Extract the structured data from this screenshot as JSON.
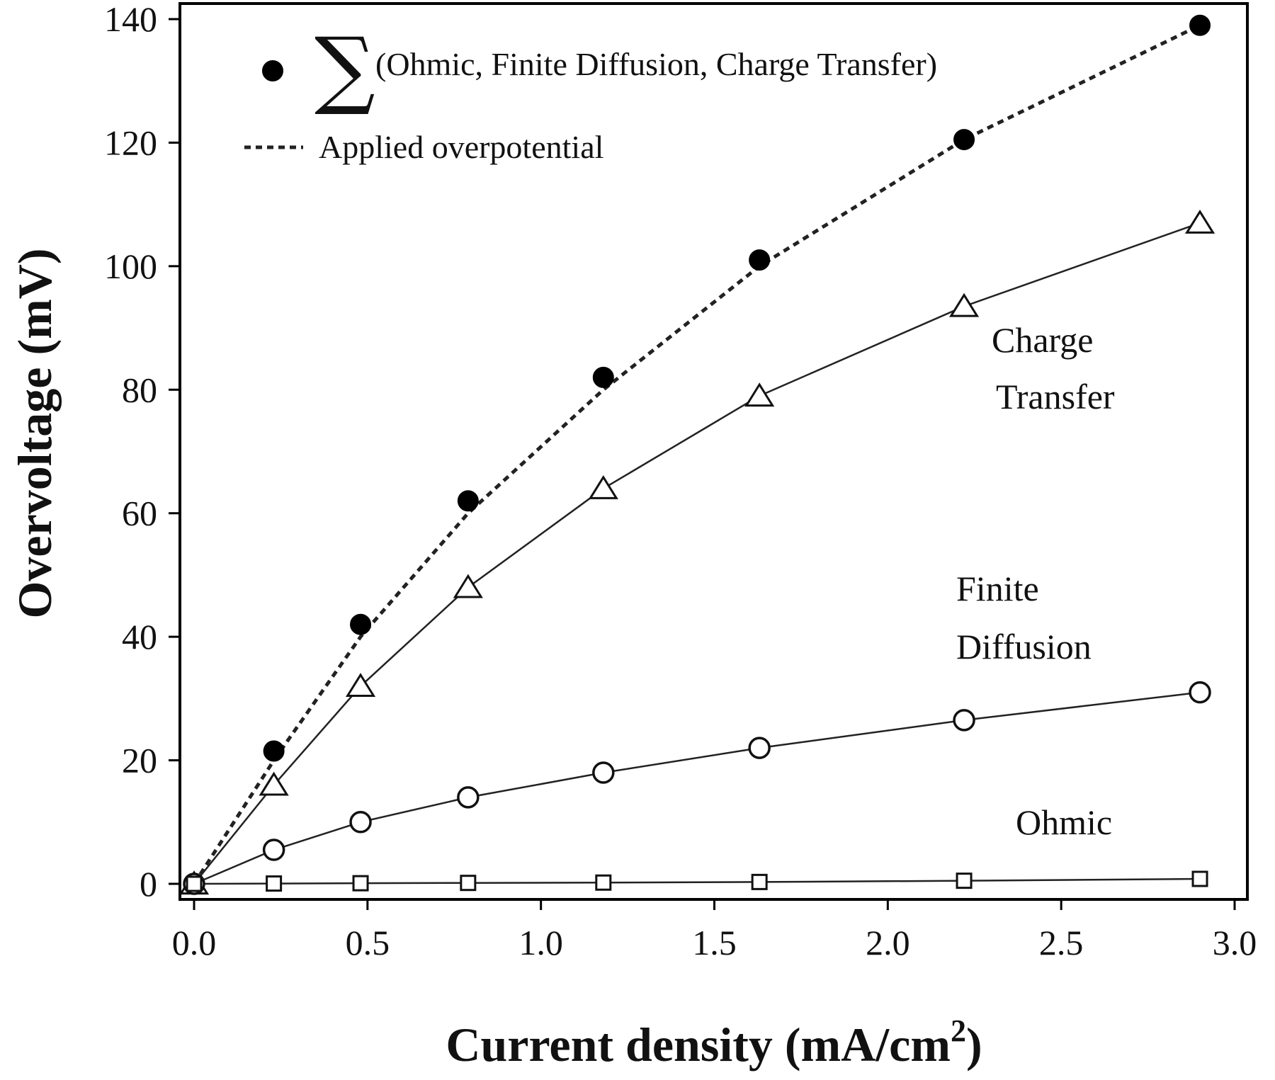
{
  "chart_data": {
    "type": "line",
    "title": "",
    "xlabel": "Current density (mA/cm",
    "xlabel_sup": "2",
    "xlabel_end": ")",
    "ylabel": "Overvoltage (mV)",
    "xlim": [
      -0.05,
      3.0
    ],
    "ylim": [
      -2,
      140
    ],
    "x_ticks": [
      0.0,
      0.5,
      1.0,
      1.5,
      2.0,
      2.5,
      3.0
    ],
    "x_tick_labels": [
      "0.0",
      "0.5",
      "1.0",
      "1.5",
      "2.0",
      "2.5",
      "3.0"
    ],
    "y_ticks": [
      0,
      20,
      40,
      60,
      80,
      100,
      120,
      140
    ],
    "y_tick_labels": [
      "0",
      "20",
      "40",
      "60",
      "80",
      "100",
      "120",
      "140"
    ],
    "grid": false,
    "legend_position": "top-left",
    "legend": {
      "sum_symbol": "∑",
      "sum_label": "(Ohmic, Finite Diffusion, Charge Transfer)",
      "applied_label": "Applied overpotential"
    },
    "series": [
      {
        "key": "sum",
        "marker": "filled-circle",
        "line": "none",
        "x": [
          0.0,
          0.23,
          0.48,
          0.79,
          1.18,
          1.63,
          2.22,
          2.9
        ],
        "values": [
          0,
          21.5,
          42,
          62,
          82,
          101,
          120.5,
          139
        ]
      },
      {
        "key": "applied",
        "marker": "none",
        "line": "dotted",
        "x": [
          0.0,
          0.23,
          0.48,
          0.79,
          1.18,
          1.63,
          2.22,
          2.9
        ],
        "values": [
          0,
          20,
          40,
          60,
          80,
          100,
          120.5,
          139
        ]
      },
      {
        "key": "charge_transfer",
        "label_lines": [
          "Charge",
          "Transfer"
        ],
        "marker": "open-triangle",
        "line": "solid",
        "x": [
          0.0,
          0.23,
          0.48,
          0.79,
          1.18,
          1.63,
          2.22,
          2.9
        ],
        "values": [
          0,
          16,
          32,
          48,
          64,
          79,
          93.5,
          107
        ]
      },
      {
        "key": "finite_diffusion",
        "label_lines": [
          "Finite",
          "Diffusion"
        ],
        "marker": "open-circle",
        "line": "solid",
        "x": [
          0.0,
          0.23,
          0.48,
          0.79,
          1.18,
          1.63,
          2.22,
          2.9
        ],
        "values": [
          0,
          5.5,
          10,
          14,
          18,
          22,
          26.5,
          31
        ]
      },
      {
        "key": "ohmic",
        "label_lines": [
          "Ohmic"
        ],
        "marker": "open-square",
        "line": "solid",
        "x": [
          0.0,
          0.23,
          0.48,
          0.79,
          1.18,
          1.63,
          2.22,
          2.9
        ],
        "values": [
          0,
          0.05,
          0.1,
          0.15,
          0.2,
          0.3,
          0.5,
          0.8
        ]
      }
    ]
  }
}
